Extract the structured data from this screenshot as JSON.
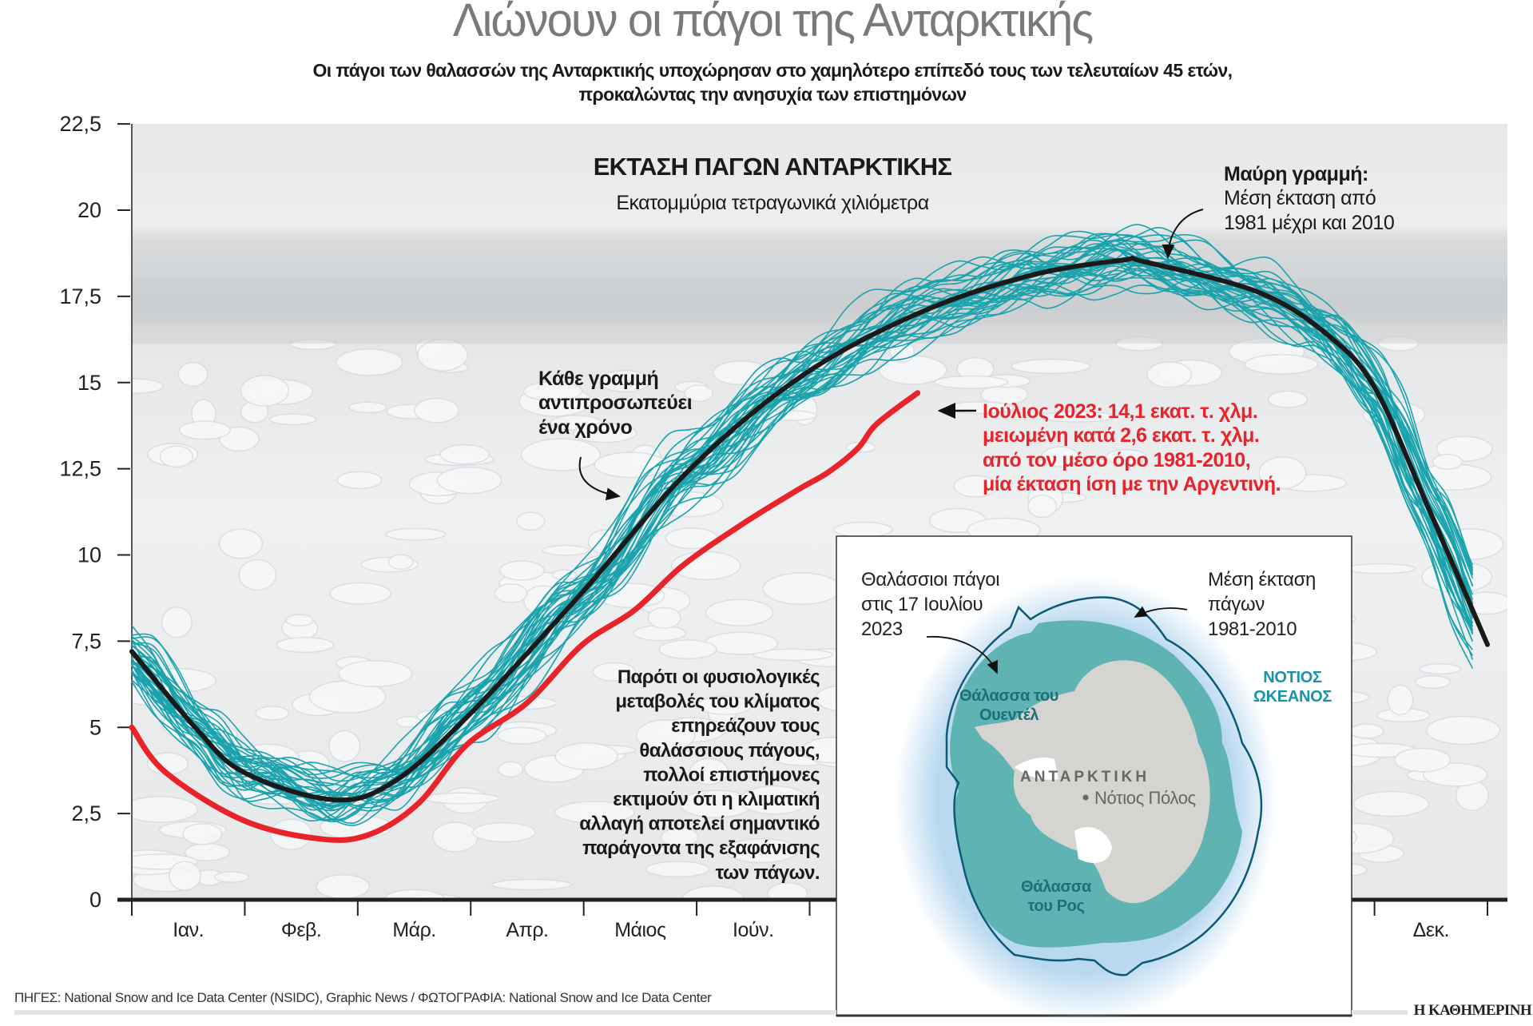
{
  "header": {
    "title": "Λιώνουν οι πάγοι της Ανταρκτικής",
    "subtitle_lines": [
      "Οι πάγοι των θαλασσών της Ανταρκτικής υποχώρησαν στο χαμηλότερο επίπεδό τους των τελευταίων 45 ετών,",
      "προκαλώντας την ανησυχία των επιστημόνων"
    ]
  },
  "chart_data": {
    "type": "line",
    "title": "ΕΚΤΑΣΗ ΠΑΓΩΝ ΑΝΤΑΡΚΤΙΚΗΣ",
    "subtitle": "Εκατομμύρια τετραγωνικά χιλιόμετρα",
    "ylim": [
      0,
      22.5
    ],
    "y_ticks": [
      "0",
      "2,5",
      "5",
      "7,5",
      "10",
      "12,5",
      "15",
      "17,5",
      "20",
      "22,5"
    ],
    "x_tick_labels_visible": [
      "Ιαν.",
      "Φεβ.",
      "Μάρ.",
      "Απρ.",
      "Μάιος",
      "Ιούν.",
      "Δεκ."
    ],
    "x_tick_label_months": [
      1,
      2,
      3,
      4,
      5,
      6,
      12
    ],
    "grid": false,
    "colors": {
      "mean": "#1a1a1a",
      "years": "#1ba3ad",
      "year_2023": "#e8232a"
    },
    "series": [
      {
        "key": "mean_1981_2010",
        "x": [
          "01-01",
          "01-18",
          "01-31",
          "02-24",
          "03-12",
          "04-01",
          "05-01",
          "05-31",
          "06-30",
          "07-31",
          "08-30",
          "09-24",
          "09-30",
          "10-31",
          "11-19",
          "12-01",
          "12-15",
          "12-31"
        ],
        "y": [
          7.2,
          5.0,
          3.7,
          2.9,
          3.4,
          5.3,
          8.8,
          12.5,
          15.2,
          17.0,
          18.1,
          18.55,
          18.5,
          17.6,
          16.3,
          14.8,
          11.4,
          7.4
        ]
      },
      {
        "key": "2023",
        "x": [
          "01-01",
          "01-10",
          "01-31",
          "02-21",
          "03-06",
          "03-19",
          "04-01",
          "04-17",
          "05-02",
          "05-16",
          "05-29",
          "06-14",
          "06-29",
          "07-07",
          "07-15",
          "07-20",
          "07-31"
        ],
        "y": [
          5.0,
          3.7,
          2.3,
          1.76,
          1.9,
          2.8,
          4.5,
          5.7,
          7.4,
          8.4,
          9.7,
          10.9,
          11.9,
          12.4,
          13.1,
          13.8,
          14.7
        ]
      }
    ],
    "annotations": {
      "mean_label_bold": "Μαύρη γραμμή:",
      "mean_label_lines": [
        "Μέση έκταση από",
        "1981 μέχρι και 2010"
      ],
      "years_label_lines": [
        "Κάθε γραμμή",
        "αντιπροσωπεύει",
        "ένα χρόνο"
      ],
      "red_label_lines": [
        "Ιούλιος 2023: 14,1 εκατ. τ. χλμ.",
        "μειωμένη κατά 2,6 εκατ. τ. χλμ.",
        "από τον μέσο όρο 1981-2010,",
        "μία έκταση ίση με την Αργεντινή."
      ],
      "paragraph_lines": [
        "Παρότι οι φυσιολογικές",
        "μεταβολές του κλίματος",
        "επηρεάζουν τους",
        "θαλάσσιους πάγους,",
        "πολλοί επιστήμονες",
        "εκτιμούν ότι η κλιματική",
        "αλλαγή αποτελεί σημαντικό",
        "παράγοντα της εξαφάνισης",
        "των πάγων."
      ]
    }
  },
  "map": {
    "ice_2023_label_lines": [
      "Θαλάσσιοι πάγοι",
      "στις 17 Ιουλίου",
      "2023"
    ],
    "mean_extent_label_lines": [
      "Μέση έκταση",
      "πάγων",
      "1981-2010"
    ],
    "ocean_label_lines": [
      "ΝΟΤΙΟΣ",
      "ΩΚΕΑΝΟΣ"
    ],
    "weddell_lines": [
      "Θάλασσα του",
      "Ουεντέλ"
    ],
    "ross_lines": [
      "Θάλασσα",
      "του Ρος"
    ],
    "continent": "ΑΝΤΑΡΚΤΙΚΗ",
    "pole": "Νότιος Πόλος",
    "colors": {
      "ice": "#5fb3b3",
      "ocean": "#b9d9f0",
      "mean_outline": "#0d5a78",
      "land": "#d6d4d0"
    }
  },
  "footer": {
    "sources": "ΠΗΓΕΣ: National Snow and Ice Data Center (NSIDC), Graphic News / ΦΩΤΟΓΡΑΦΙΑ: National Snow and Ice Data Center",
    "brand": "Η ΚΑΘΗΜΕΡΙΝΗ"
  }
}
